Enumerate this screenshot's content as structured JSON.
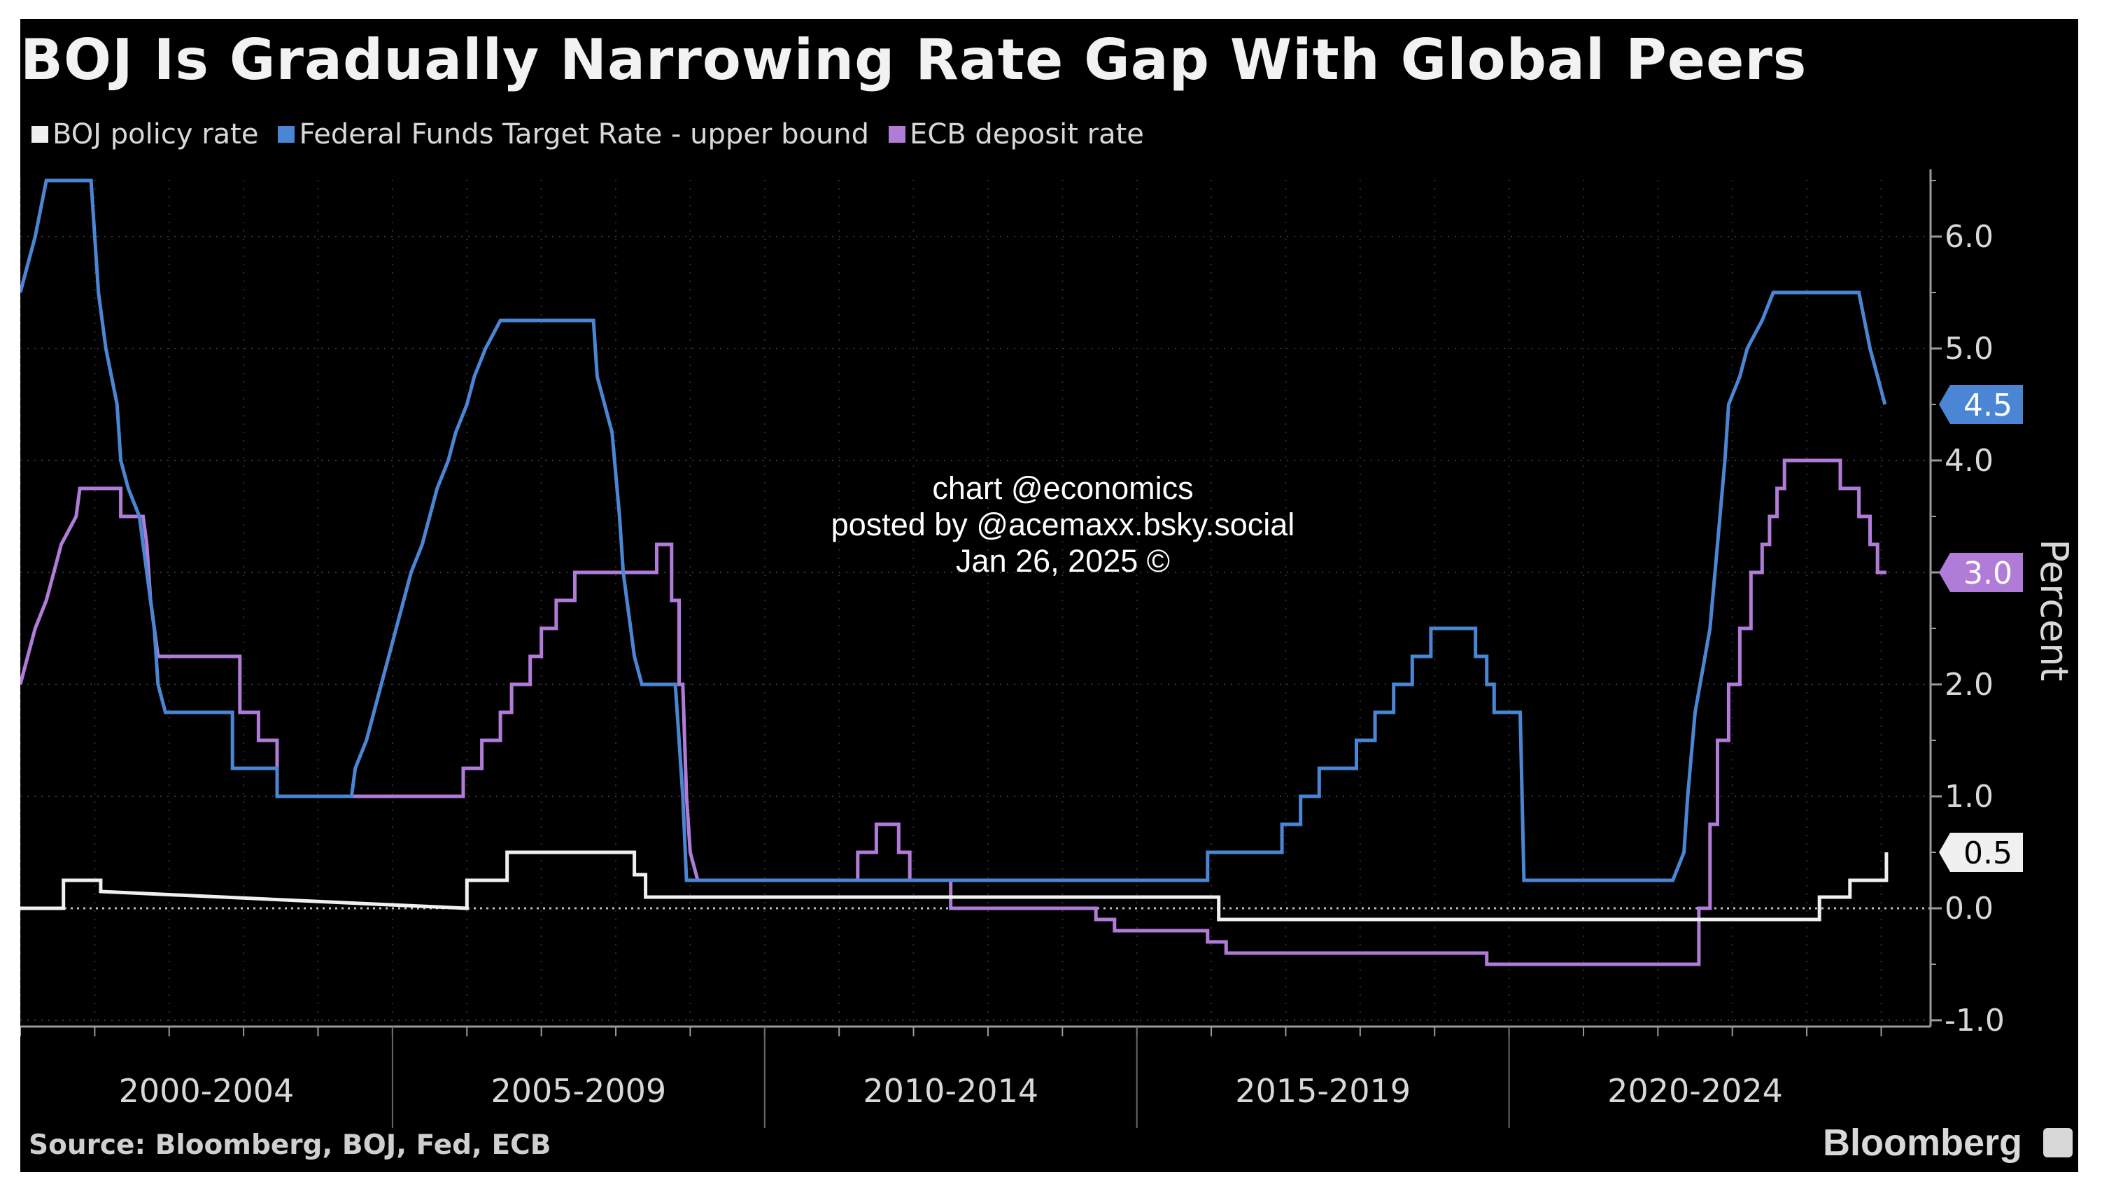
{
  "chart_data": {
    "type": "line",
    "title": "BOJ Is Gradually Narrowing Rate Gap With Global Peers",
    "ylabel": "Percent",
    "xlabel": "",
    "x_range": [
      2000.0,
      2025.08
    ],
    "ylim": [
      -1.1,
      6.6
    ],
    "y_ticks": [
      "-1.0",
      "0.0",
      "1.0",
      "2.0",
      "3.0",
      "4.0",
      "5.0",
      "6.0"
    ],
    "x_groups": [
      "2000-2004",
      "2005-2009",
      "2010-2014",
      "2015-2019",
      "2020-2024"
    ],
    "grid": true,
    "legend_position": "top-left",
    "series": [
      {
        "name": "BOJ policy rate",
        "color": "#f0f0f0",
        "last_value_label": "0.5",
        "points": [
          [
            2000.0,
            0.0
          ],
          [
            2000.58,
            0.0
          ],
          [
            2000.58,
            0.25
          ],
          [
            2001.08,
            0.25
          ],
          [
            2001.08,
            0.15
          ],
          [
            2006.0,
            0.0
          ],
          [
            2006.0,
            0.25
          ],
          [
            2006.54,
            0.25
          ],
          [
            2006.54,
            0.5
          ],
          [
            2008.25,
            0.5
          ],
          [
            2008.25,
            0.3
          ],
          [
            2008.4,
            0.3
          ],
          [
            2008.4,
            0.1
          ],
          [
            2016.1,
            0.1
          ],
          [
            2016.1,
            -0.1
          ],
          [
            2024.17,
            -0.1
          ],
          [
            2024.17,
            0.1
          ],
          [
            2024.58,
            0.1
          ],
          [
            2024.58,
            0.25
          ],
          [
            2025.07,
            0.25
          ],
          [
            2025.07,
            0.5
          ]
        ]
      },
      {
        "name": "Federal Funds Target Rate - upper bound",
        "color": "#4a86d4",
        "last_value_label": "4.5",
        "points": [
          [
            2000.0,
            5.5
          ],
          [
            2000.1,
            5.75
          ],
          [
            2000.2,
            6.0
          ],
          [
            2000.35,
            6.5
          ],
          [
            2000.95,
            6.5
          ],
          [
            2001.0,
            6.0
          ],
          [
            2001.05,
            5.5
          ],
          [
            2001.15,
            5.0
          ],
          [
            2001.3,
            4.5
          ],
          [
            2001.35,
            4.0
          ],
          [
            2001.45,
            3.75
          ],
          [
            2001.6,
            3.5
          ],
          [
            2001.7,
            3.0
          ],
          [
            2001.8,
            2.5
          ],
          [
            2001.85,
            2.0
          ],
          [
            2001.95,
            1.75
          ],
          [
            2002.85,
            1.75
          ],
          [
            2002.85,
            1.25
          ],
          [
            2003.45,
            1.25
          ],
          [
            2003.45,
            1.0
          ],
          [
            2004.45,
            1.0
          ],
          [
            2004.5,
            1.25
          ],
          [
            2004.65,
            1.5
          ],
          [
            2004.75,
            1.75
          ],
          [
            2004.85,
            2.0
          ],
          [
            2004.95,
            2.25
          ],
          [
            2005.05,
            2.5
          ],
          [
            2005.15,
            2.75
          ],
          [
            2005.25,
            3.0
          ],
          [
            2005.4,
            3.25
          ],
          [
            2005.5,
            3.5
          ],
          [
            2005.6,
            3.75
          ],
          [
            2005.75,
            4.0
          ],
          [
            2005.85,
            4.25
          ],
          [
            2006.0,
            4.5
          ],
          [
            2006.1,
            4.75
          ],
          [
            2006.25,
            5.0
          ],
          [
            2006.45,
            5.25
          ],
          [
            2007.7,
            5.25
          ],
          [
            2007.75,
            4.75
          ],
          [
            2007.85,
            4.5
          ],
          [
            2007.95,
            4.25
          ],
          [
            2008.05,
            3.5
          ],
          [
            2008.1,
            3.0
          ],
          [
            2008.25,
            2.25
          ],
          [
            2008.35,
            2.0
          ],
          [
            2008.8,
            2.0
          ],
          [
            2008.85,
            1.5
          ],
          [
            2008.9,
            1.0
          ],
          [
            2008.95,
            0.25
          ],
          [
            2015.95,
            0.25
          ],
          [
            2015.95,
            0.5
          ],
          [
            2016.95,
            0.5
          ],
          [
            2016.95,
            0.75
          ],
          [
            2017.2,
            0.75
          ],
          [
            2017.2,
            1.0
          ],
          [
            2017.45,
            1.0
          ],
          [
            2017.45,
            1.25
          ],
          [
            2017.95,
            1.25
          ],
          [
            2017.95,
            1.5
          ],
          [
            2018.2,
            1.5
          ],
          [
            2018.2,
            1.75
          ],
          [
            2018.45,
            1.75
          ],
          [
            2018.45,
            2.0
          ],
          [
            2018.7,
            2.0
          ],
          [
            2018.7,
            2.25
          ],
          [
            2018.95,
            2.25
          ],
          [
            2018.95,
            2.5
          ],
          [
            2019.55,
            2.5
          ],
          [
            2019.55,
            2.25
          ],
          [
            2019.7,
            2.25
          ],
          [
            2019.7,
            2.0
          ],
          [
            2019.8,
            2.0
          ],
          [
            2019.8,
            1.75
          ],
          [
            2020.15,
            1.75
          ],
          [
            2020.2,
            0.25
          ],
          [
            2022.2,
            0.25
          ],
          [
            2022.35,
            0.5
          ],
          [
            2022.4,
            1.0
          ],
          [
            2022.5,
            1.75
          ],
          [
            2022.7,
            2.5
          ],
          [
            2022.8,
            3.25
          ],
          [
            2022.9,
            4.0
          ],
          [
            2022.95,
            4.5
          ],
          [
            2023.1,
            4.75
          ],
          [
            2023.2,
            5.0
          ],
          [
            2023.4,
            5.25
          ],
          [
            2023.55,
            5.5
          ],
          [
            2024.7,
            5.5
          ],
          [
            2024.85,
            5.0
          ],
          [
            2024.95,
            4.75
          ],
          [
            2025.05,
            4.5
          ]
        ]
      },
      {
        "name": "ECB deposit rate",
        "color": "#b07cd8",
        "last_value_label": "3.0",
        "points": [
          [
            2000.0,
            2.0
          ],
          [
            2000.1,
            2.25
          ],
          [
            2000.2,
            2.5
          ],
          [
            2000.35,
            2.75
          ],
          [
            2000.45,
            3.0
          ],
          [
            2000.55,
            3.25
          ],
          [
            2000.75,
            3.5
          ],
          [
            2000.8,
            3.75
          ],
          [
            2001.35,
            3.75
          ],
          [
            2001.35,
            3.5
          ],
          [
            2001.65,
            3.5
          ],
          [
            2001.7,
            3.25
          ],
          [
            2001.75,
            2.75
          ],
          [
            2001.85,
            2.25
          ],
          [
            2002.95,
            2.25
          ],
          [
            2002.95,
            1.75
          ],
          [
            2003.2,
            1.75
          ],
          [
            2003.2,
            1.5
          ],
          [
            2003.45,
            1.5
          ],
          [
            2003.45,
            1.0
          ],
          [
            2005.95,
            1.0
          ],
          [
            2005.95,
            1.25
          ],
          [
            2006.2,
            1.25
          ],
          [
            2006.2,
            1.5
          ],
          [
            2006.45,
            1.5
          ],
          [
            2006.45,
            1.75
          ],
          [
            2006.6,
            1.75
          ],
          [
            2006.6,
            2.0
          ],
          [
            2006.85,
            2.0
          ],
          [
            2006.85,
            2.25
          ],
          [
            2007.0,
            2.25
          ],
          [
            2007.0,
            2.5
          ],
          [
            2007.2,
            2.5
          ],
          [
            2007.2,
            2.75
          ],
          [
            2007.45,
            2.75
          ],
          [
            2007.45,
            3.0
          ],
          [
            2008.55,
            3.0
          ],
          [
            2008.55,
            3.25
          ],
          [
            2008.75,
            3.25
          ],
          [
            2008.75,
            2.75
          ],
          [
            2008.85,
            2.75
          ],
          [
            2008.85,
            2.0
          ],
          [
            2008.9,
            2.0
          ],
          [
            2008.95,
            1.0
          ],
          [
            2009.0,
            0.5
          ],
          [
            2009.1,
            0.25
          ],
          [
            2011.25,
            0.25
          ],
          [
            2011.25,
            0.5
          ],
          [
            2011.5,
            0.5
          ],
          [
            2011.5,
            0.75
          ],
          [
            2011.8,
            0.75
          ],
          [
            2011.8,
            0.5
          ],
          [
            2011.95,
            0.5
          ],
          [
            2011.95,
            0.25
          ],
          [
            2012.5,
            0.25
          ],
          [
            2012.5,
            0.0
          ],
          [
            2014.45,
            0.0
          ],
          [
            2014.45,
            -0.1
          ],
          [
            2014.7,
            -0.1
          ],
          [
            2014.7,
            -0.2
          ],
          [
            2015.95,
            -0.2
          ],
          [
            2015.95,
            -0.3
          ],
          [
            2016.2,
            -0.3
          ],
          [
            2016.2,
            -0.4
          ],
          [
            2019.7,
            -0.4
          ],
          [
            2019.7,
            -0.5
          ],
          [
            2022.55,
            -0.5
          ],
          [
            2022.55,
            0.0
          ],
          [
            2022.7,
            0.0
          ],
          [
            2022.7,
            0.75
          ],
          [
            2022.8,
            0.75
          ],
          [
            2022.8,
            1.5
          ],
          [
            2022.95,
            1.5
          ],
          [
            2022.95,
            2.0
          ],
          [
            2023.1,
            2.0
          ],
          [
            2023.1,
            2.5
          ],
          [
            2023.25,
            2.5
          ],
          [
            2023.25,
            3.0
          ],
          [
            2023.4,
            3.0
          ],
          [
            2023.4,
            3.25
          ],
          [
            2023.5,
            3.25
          ],
          [
            2023.5,
            3.5
          ],
          [
            2023.6,
            3.5
          ],
          [
            2023.6,
            3.75
          ],
          [
            2023.7,
            3.75
          ],
          [
            2023.7,
            4.0
          ],
          [
            2024.45,
            4.0
          ],
          [
            2024.45,
            3.75
          ],
          [
            2024.7,
            3.75
          ],
          [
            2024.7,
            3.5
          ],
          [
            2024.85,
            3.5
          ],
          [
            2024.85,
            3.25
          ],
          [
            2024.95,
            3.25
          ],
          [
            2024.95,
            3.0
          ],
          [
            2025.07,
            3.0
          ]
        ]
      }
    ]
  },
  "watermark": {
    "line1": "chart @economics",
    "line2": "posted by @acemaxx.bsky.social",
    "line3": "Jan 26, 2025 ©"
  },
  "source_note": "Source: Bloomberg, BOJ, Fed, ECB",
  "brand": "Bloomberg"
}
